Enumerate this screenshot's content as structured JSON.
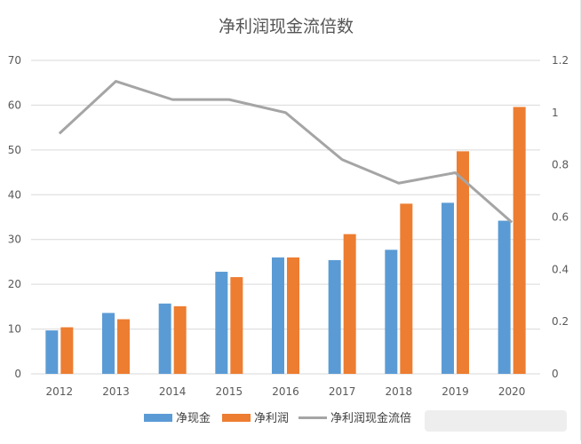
{
  "chart_data": {
    "type": "bar",
    "title": "净利润现金流倍数",
    "categories": [
      "2012",
      "2013",
      "2014",
      "2015",
      "2016",
      "2017",
      "2018",
      "2019",
      "2020"
    ],
    "series": [
      {
        "name": "净现金",
        "type": "bar",
        "axis": "left",
        "color": "#5B9BD5",
        "values": [
          9.7,
          13.6,
          15.7,
          22.8,
          26.0,
          25.4,
          27.7,
          38.2,
          34.2
        ]
      },
      {
        "name": "净利润",
        "type": "bar",
        "axis": "left",
        "color": "#ED7D31",
        "values": [
          10.4,
          12.2,
          15.1,
          21.6,
          26.0,
          31.2,
          38.0,
          49.7,
          59.6
        ]
      },
      {
        "name": "净利润现金流倍",
        "type": "line",
        "axis": "right",
        "color": "#A5A5A5",
        "values": [
          0.92,
          1.12,
          1.05,
          1.05,
          1.0,
          0.82,
          0.73,
          0.77,
          0.58
        ]
      }
    ],
    "y_left": {
      "min": 0,
      "max": 70,
      "ticks": [
        "0",
        "10",
        "20",
        "30",
        "40",
        "50",
        "60",
        "70"
      ]
    },
    "y_right": {
      "min": 0,
      "max": 1.2,
      "ticks": [
        "0",
        "0.2",
        "0.4",
        "0.6",
        "0.8",
        "1",
        "1.2"
      ]
    },
    "xlabel": "",
    "ylabel": "",
    "grid": true,
    "legend_position": "bottom"
  }
}
